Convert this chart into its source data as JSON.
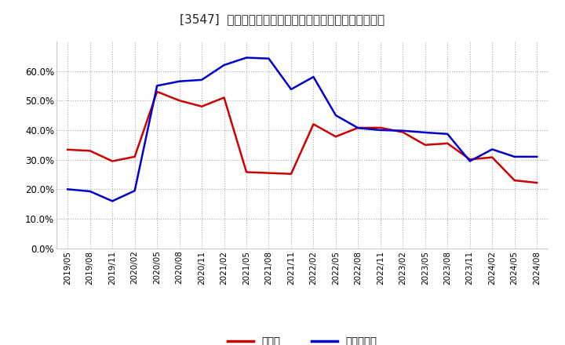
{
  "title": "[3547]  現預金、有利子負債の総資産に対する比率の推移",
  "x_labels": [
    "2019/05",
    "2019/08",
    "2019/11",
    "2020/02",
    "2020/05",
    "2020/08",
    "2020/11",
    "2021/02",
    "2021/05",
    "2021/08",
    "2021/11",
    "2022/02",
    "2022/05",
    "2022/08",
    "2022/11",
    "2023/02",
    "2023/05",
    "2023/08",
    "2023/11",
    "2024/02",
    "2024/05",
    "2024/08"
  ],
  "cash_values": [
    0.334,
    0.33,
    0.295,
    0.31,
    0.53,
    0.5,
    0.48,
    0.51,
    0.258,
    0.255,
    0.252,
    0.42,
    0.378,
    0.408,
    0.408,
    0.393,
    0.35,
    0.355,
    0.301,
    0.308,
    0.23,
    0.222
  ],
  "debt_values": [
    0.2,
    0.193,
    0.16,
    0.195,
    0.55,
    0.565,
    0.57,
    0.62,
    0.645,
    0.642,
    0.538,
    0.58,
    0.45,
    0.407,
    0.4,
    0.398,
    0.392,
    0.387,
    0.295,
    0.335,
    0.31,
    0.31
  ],
  "cash_color": "#cc0000",
  "debt_color": "#0000cc",
  "background_color": "#ffffff",
  "plot_bg_color": "#ffffff",
  "grid_color": "#aaaaaa",
  "legend_cash": "現預金",
  "legend_debt": "有利子負債",
  "ylim": [
    0.0,
    0.7
  ],
  "yticks": [
    0.0,
    0.1,
    0.2,
    0.3,
    0.4,
    0.5,
    0.6
  ],
  "line_width": 1.8,
  "title_fontsize": 11,
  "tick_fontsize": 7.5,
  "ytick_fontsize": 8.5,
  "legend_fontsize": 9.5
}
